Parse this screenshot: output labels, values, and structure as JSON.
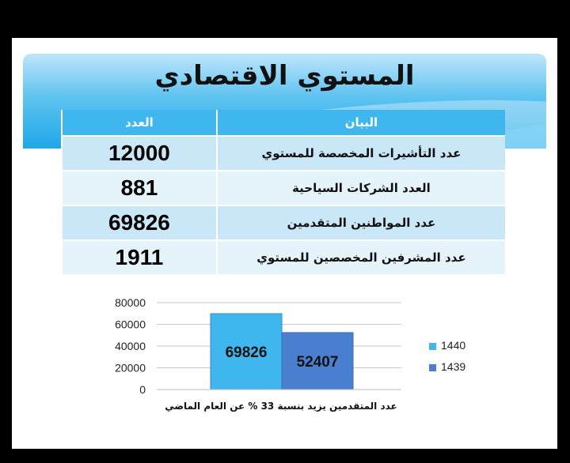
{
  "title": "المستوي الاقتصادي",
  "table": {
    "headers": {
      "label": "البيان",
      "count": "العدد"
    },
    "rows": [
      {
        "label": "عدد التأشيرات المخصصة للمستوي",
        "value": "12000"
      },
      {
        "label": "العدد الشركات السياحية",
        "value": "881"
      },
      {
        "label": "عدد المواطنين المتقدمين",
        "value": "69826"
      },
      {
        "label": "عدد المشرفين المخصصين للمستوي",
        "value": "1911"
      }
    ]
  },
  "chart_data": {
    "type": "bar",
    "ylim": [
      0,
      80000
    ],
    "yticks": [
      "0",
      "20000",
      "40000",
      "60000",
      "80000"
    ],
    "grid": true,
    "legend_position": "right",
    "series": [
      {
        "name": "1440",
        "values": [
          69826
        ],
        "label": "69826",
        "color": "#3fb6ee"
      },
      {
        "name": "1439",
        "values": [
          52407
        ],
        "label": "52407",
        "color": "#4a7fcf"
      }
    ],
    "xlabel": "عدد المتقدمين يزيد بنسبة  33 % عن العام الماضي"
  },
  "colors": {
    "banner": "#3fb6ee",
    "header": "#3fb6ee"
  }
}
